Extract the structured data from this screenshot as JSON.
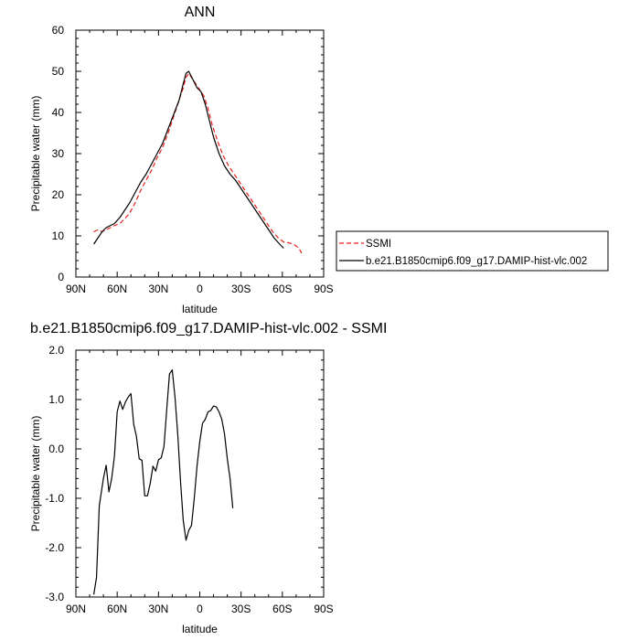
{
  "chart_data": [
    {
      "type": "line",
      "title": "ANN",
      "xlabel": "latitude",
      "ylabel": "Precipitable water (mm)",
      "xlim": [
        90,
        -90
      ],
      "ylim": [
        0,
        60
      ],
      "x_ticks": [
        90,
        60,
        30,
        0,
        -30,
        -60,
        -90
      ],
      "x_tick_labels": [
        "90N",
        "60N",
        "30N",
        "0",
        "30S",
        "60S",
        "90S"
      ],
      "y_ticks": [
        0,
        10,
        20,
        30,
        40,
        50,
        60
      ],
      "y_tick_labels": [
        "0",
        "10",
        "20",
        "30",
        "40",
        "50",
        "60"
      ],
      "grid": false,
      "legend": {
        "position": "right",
        "entries": [
          "SSMI",
          "b.e21.B1850cmip6.f09_g17.DAMIP-hist-vlc.002"
        ]
      },
      "series": [
        {
          "name": "SSMI",
          "color": "#e8201a",
          "dash": "dashed",
          "points": [
            [
              77,
              11
            ],
            [
              74,
              11.5
            ],
            [
              71,
              11
            ],
            [
              68,
              11.5
            ],
            [
              65,
              12
            ],
            [
              62,
              12.5
            ],
            [
              58,
              13
            ],
            [
              55,
              14
            ],
            [
              51,
              15.5
            ],
            [
              47,
              18
            ],
            [
              43,
              21
            ],
            [
              39,
              23.5
            ],
            [
              35,
              26
            ],
            [
              31,
              29
            ],
            [
              27,
              31.5
            ],
            [
              23,
              35
            ],
            [
              19,
              39
            ],
            [
              15,
              43
            ],
            [
              12,
              46
            ],
            [
              10,
              48.5
            ],
            [
              8,
              49.5
            ],
            [
              6,
              48.5
            ],
            [
              4,
              47.5
            ],
            [
              2,
              46.5
            ],
            [
              0,
              45.5
            ],
            [
              -3,
              44
            ],
            [
              -6,
              41
            ],
            [
              -9,
              37
            ],
            [
              -13,
              33
            ],
            [
              -17,
              29.5
            ],
            [
              -21,
              27
            ],
            [
              -25,
              25
            ],
            [
              -29,
              23
            ],
            [
              -33,
              21
            ],
            [
              -37,
              19
            ],
            [
              -41,
              17
            ],
            [
              -45,
              15
            ],
            [
              -49,
              13
            ],
            [
              -53,
              11
            ],
            [
              -57,
              9.5
            ],
            [
              -61,
              8.5
            ],
            [
              -65,
              8.3
            ],
            [
              -69,
              7.8
            ],
            [
              -72,
              7
            ],
            [
              -74,
              5.8
            ]
          ]
        },
        {
          "name": "b.e21.B1850cmip6.f09_g17.DAMIP-hist-vlc.002",
          "color": "#000000",
          "dash": "solid",
          "points": [
            [
              77,
              8
            ],
            [
              74,
              9.5
            ],
            [
              71,
              11
            ],
            [
              68,
              12
            ],
            [
              65,
              12.5
            ],
            [
              62,
              13
            ],
            [
              58,
              14.5
            ],
            [
              55,
              16
            ],
            [
              51,
              18
            ],
            [
              47,
              20.5
            ],
            [
              43,
              23
            ],
            [
              39,
              25
            ],
            [
              35,
              27.5
            ],
            [
              31,
              30
            ],
            [
              27,
              32.5
            ],
            [
              23,
              36
            ],
            [
              19,
              39.5
            ],
            [
              15,
              43
            ],
            [
              12,
              47
            ],
            [
              10,
              49.5
            ],
            [
              8,
              50
            ],
            [
              5,
              48
            ],
            [
              2,
              46
            ],
            [
              -1,
              45
            ],
            [
              -4,
              42
            ],
            [
              -7,
              38
            ],
            [
              -10,
              34
            ],
            [
              -14,
              30
            ],
            [
              -18,
              27
            ],
            [
              -22,
              25
            ],
            [
              -26,
              23.5
            ],
            [
              -30,
              21.5
            ],
            [
              -34,
              19.5
            ],
            [
              -38,
              17.5
            ],
            [
              -42,
              15.5
            ],
            [
              -46,
              13.5
            ],
            [
              -50,
              11.5
            ],
            [
              -54,
              9.5
            ],
            [
              -58,
              8
            ],
            [
              -61,
              7
            ]
          ]
        }
      ]
    },
    {
      "type": "line",
      "title": "b.e21.B1850cmip6.f09_g17.DAMIP-hist-vlc.002 - SSMI",
      "xlabel": "latitude",
      "ylabel": "Precipitable water (mm)",
      "xlim": [
        90,
        -90
      ],
      "ylim": [
        -3.0,
        2.0
      ],
      "x_ticks": [
        90,
        60,
        30,
        0,
        -30,
        -60,
        -90
      ],
      "x_tick_labels": [
        "90N",
        "60N",
        "30N",
        "0",
        "30S",
        "60S",
        "90S"
      ],
      "y_ticks": [
        -3.0,
        -2.0,
        -1.0,
        0.0,
        1.0,
        2.0
      ],
      "y_tick_labels": [
        "-3.0",
        "-2.0",
        "-1.0",
        "0.0",
        "1.0",
        "2.0"
      ],
      "grid": false,
      "series": [
        {
          "color": "#000000",
          "dash": "solid",
          "points": [
            [
              77,
              -2.95
            ],
            [
              75,
              -2.6
            ],
            [
              73,
              -1.15
            ],
            [
              70,
              -0.6
            ],
            [
              68,
              -0.33
            ],
            [
              66,
              -0.87
            ],
            [
              64,
              -0.6
            ],
            [
              62,
              -0.15
            ],
            [
              60,
              0.75
            ],
            [
              58,
              0.97
            ],
            [
              56,
              0.8
            ],
            [
              54,
              0.95
            ],
            [
              52,
              1.05
            ],
            [
              50,
              1.12
            ],
            [
              48,
              0.5
            ],
            [
              46,
              0.25
            ],
            [
              44,
              -0.2
            ],
            [
              42,
              -0.23
            ],
            [
              40,
              -0.95
            ],
            [
              38,
              -0.95
            ],
            [
              36,
              -0.7
            ],
            [
              34,
              -0.35
            ],
            [
              32,
              -0.45
            ],
            [
              30,
              -0.22
            ],
            [
              28,
              -0.18
            ],
            [
              26,
              0.05
            ],
            [
              24,
              0.8
            ],
            [
              22,
              1.52
            ],
            [
              20,
              1.6
            ],
            [
              18,
              1.05
            ],
            [
              16,
              0.3
            ],
            [
              14,
              -0.65
            ],
            [
              12,
              -1.45
            ],
            [
              10,
              -1.85
            ],
            [
              8,
              -1.65
            ],
            [
              6,
              -1.55
            ],
            [
              4,
              -1.0
            ],
            [
              2,
              -0.35
            ],
            [
              0,
              0.15
            ],
            [
              -2,
              0.52
            ],
            [
              -4,
              0.6
            ],
            [
              -6,
              0.75
            ],
            [
              -8,
              0.78
            ],
            [
              -10,
              0.87
            ],
            [
              -12,
              0.85
            ],
            [
              -14,
              0.75
            ],
            [
              -16,
              0.6
            ],
            [
              -18,
              0.3
            ],
            [
              -20,
              -0.2
            ],
            [
              -22,
              -0.6
            ],
            [
              -24,
              -1.2
            ]
          ]
        }
      ]
    }
  ]
}
